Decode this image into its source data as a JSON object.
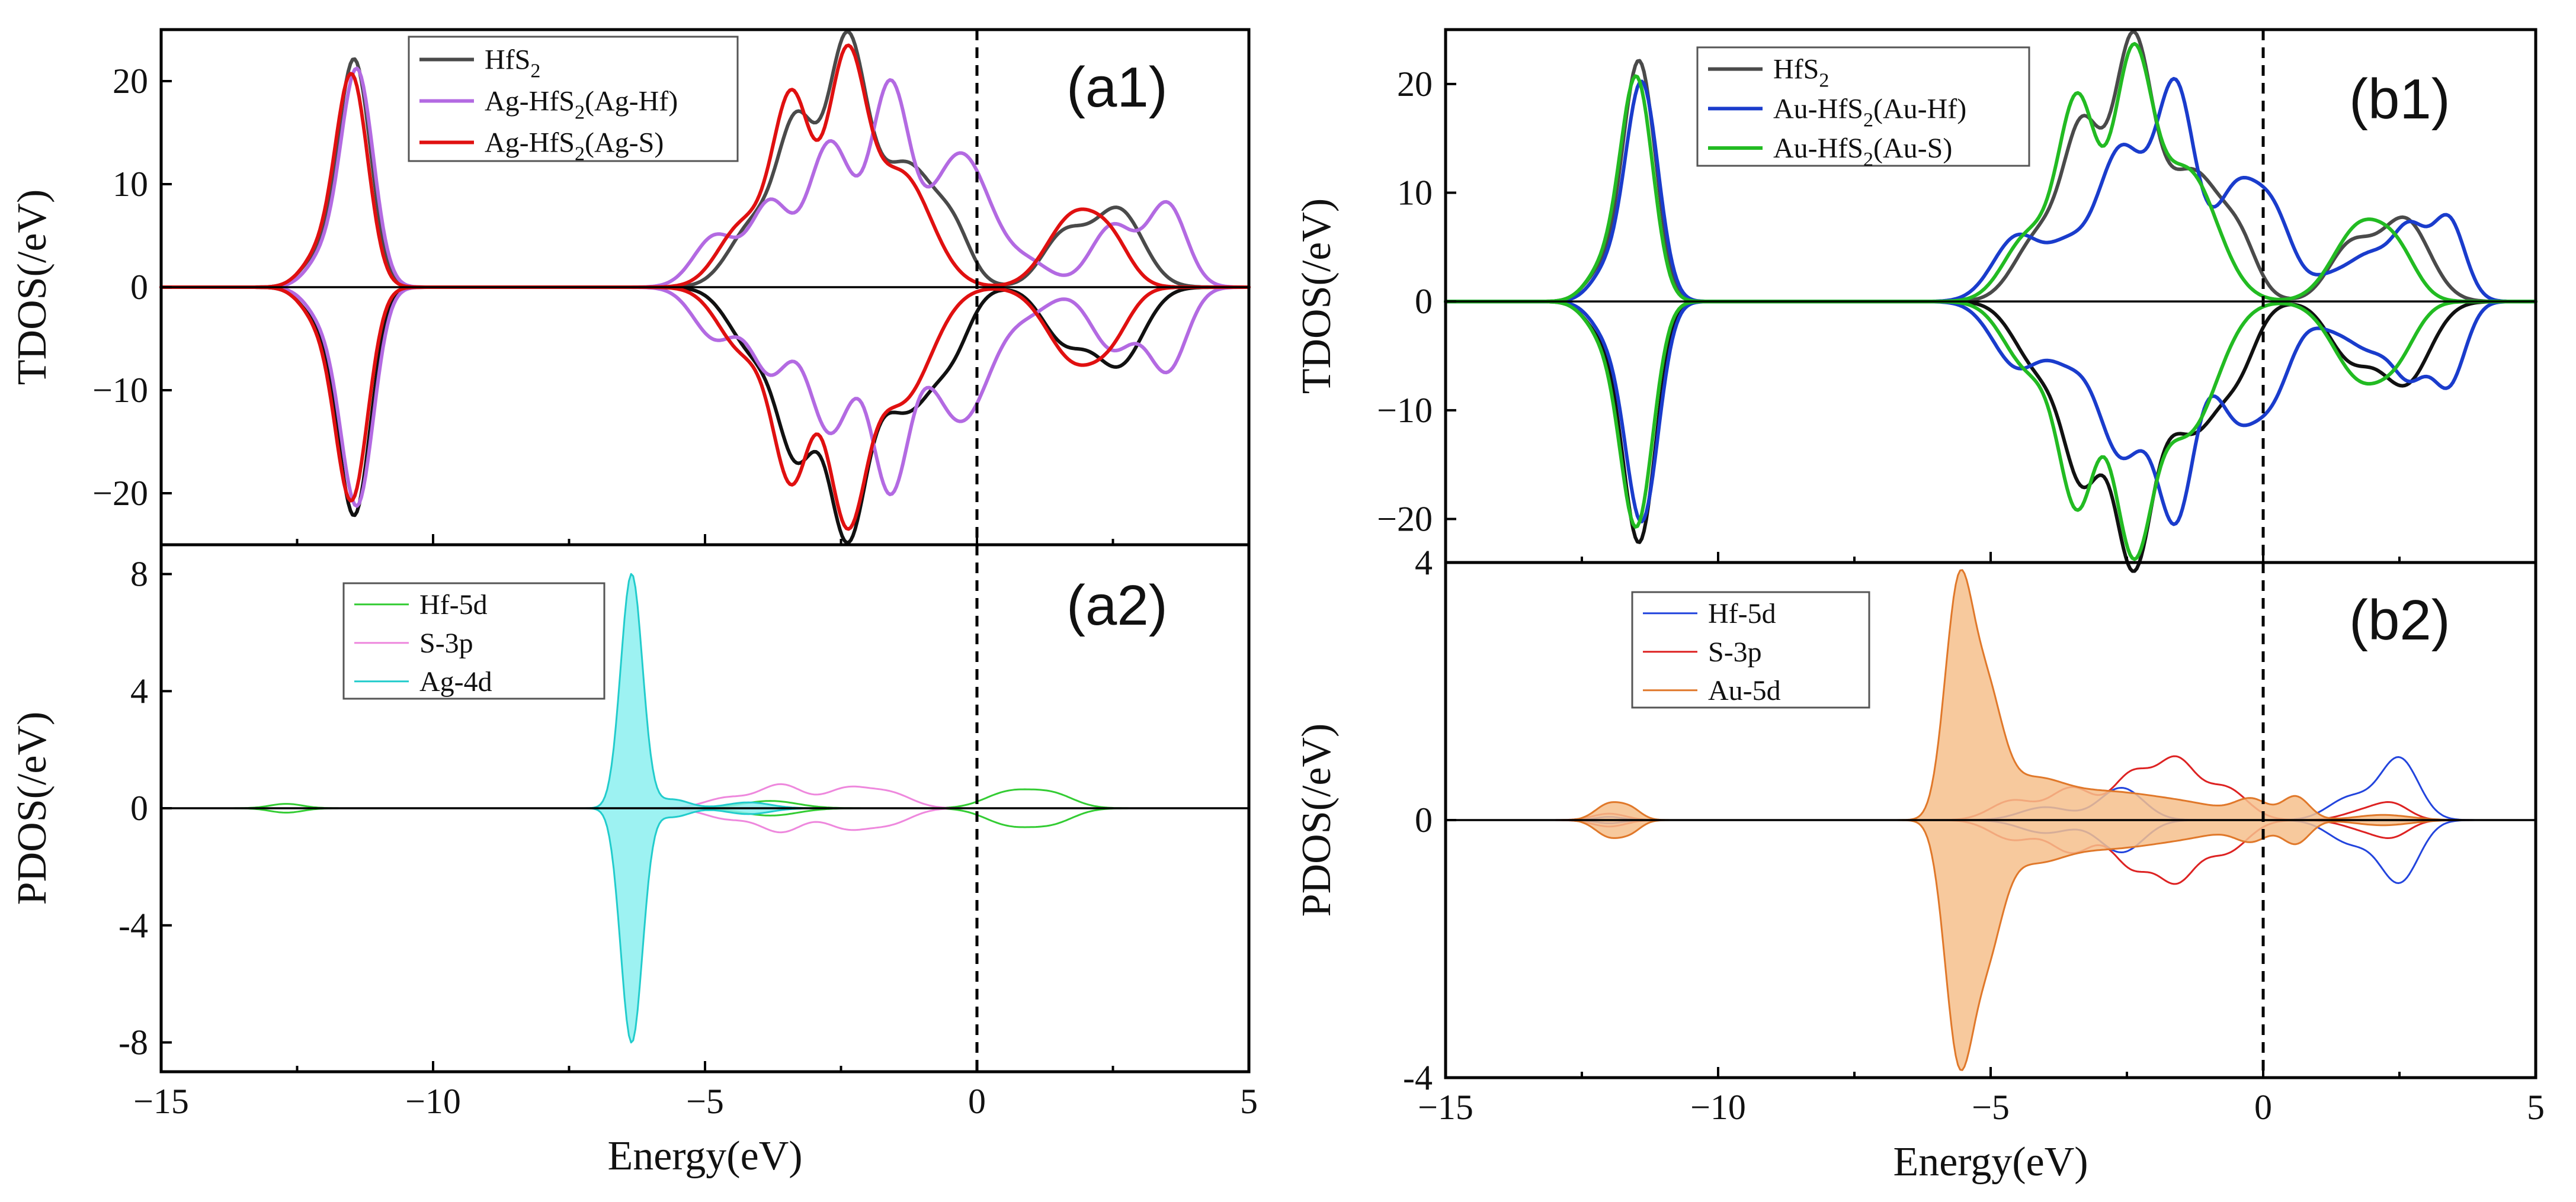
{
  "chart_data": [
    {
      "id": "a1",
      "type": "line",
      "panel_label": "(a1)",
      "ylabel": "TDOS(/eV)",
      "xlim": [
        -15,
        5
      ],
      "ylim": [
        -25,
        25
      ],
      "yticks": [
        20,
        10,
        0,
        -10,
        -20
      ],
      "ytick_labels": [
        "20",
        "10",
        "0",
        "−10",
        "−20"
      ],
      "fermi_level": 0,
      "legend_position": "top-center",
      "series": [
        {
          "name": "HfS2",
          "label_base": "HfS",
          "label_sub": "2",
          "label_tail": "",
          "color": "#4a4a4a",
          "mirror_color": "#111111",
          "peaks": [
            {
              "c": -11.45,
              "w": 0.3,
              "a": 22
            },
            {
              "c": -12.15,
              "w": 0.3,
              "a": 2.5
            },
            {
              "c": -4.1,
              "w": 0.45,
              "a": 6
            },
            {
              "c": -3.3,
              "w": 0.35,
              "a": 15
            },
            {
              "c": -2.4,
              "w": 0.35,
              "a": 22
            },
            {
              "c": -1.3,
              "w": 0.6,
              "a": 12
            },
            {
              "c": -0.4,
              "w": 0.3,
              "a": 3
            },
            {
              "c": 1.6,
              "w": 0.4,
              "a": 5
            },
            {
              "c": 2.6,
              "w": 0.45,
              "a": 7.5
            }
          ]
        },
        {
          "name": "Ag-HfS2(Ag-Hf)",
          "label_base": "Ag-HfS",
          "label_sub": "2",
          "label_tail": "(Ag-Hf)",
          "color": "#b36ae2",
          "mirror_color": "#b36ae2",
          "peaks": [
            {
              "c": -11.4,
              "w": 0.3,
              "a": 21
            },
            {
              "c": -12.05,
              "w": 0.3,
              "a": 2.5
            },
            {
              "c": -4.8,
              "w": 0.4,
              "a": 5
            },
            {
              "c": -3.8,
              "w": 0.35,
              "a": 8
            },
            {
              "c": -2.7,
              "w": 0.4,
              "a": 14
            },
            {
              "c": -1.6,
              "w": 0.35,
              "a": 19
            },
            {
              "c": -0.3,
              "w": 0.55,
              "a": 13
            },
            {
              "c": 1.0,
              "w": 0.4,
              "a": 2
            },
            {
              "c": 2.5,
              "w": 0.4,
              "a": 6
            },
            {
              "c": 3.5,
              "w": 0.35,
              "a": 8
            }
          ]
        },
        {
          "name": "Ag-HfS2(Ag-S)",
          "label_base": "Ag-HfS",
          "label_sub": "2",
          "label_tail": "(Ag-S)",
          "color": "#e01010",
          "mirror_color": "#e01010",
          "peaks": [
            {
              "c": -11.5,
              "w": 0.3,
              "a": 20.5
            },
            {
              "c": -12.15,
              "w": 0.3,
              "a": 2.5
            },
            {
              "c": -4.3,
              "w": 0.45,
              "a": 6
            },
            {
              "c": -3.4,
              "w": 0.35,
              "a": 18
            },
            {
              "c": -2.4,
              "w": 0.35,
              "a": 21
            },
            {
              "c": -1.4,
              "w": 0.55,
              "a": 11
            },
            {
              "c": 1.8,
              "w": 0.5,
              "a": 7
            },
            {
              "c": 2.5,
              "w": 0.35,
              "a": 3
            }
          ]
        }
      ]
    },
    {
      "id": "a2",
      "type": "area",
      "panel_label": "(a2)",
      "ylabel": "PDOS(/eV)",
      "xlabel": "Energy(eV)",
      "xlim": [
        -15,
        5
      ],
      "ylim": [
        -9,
        9
      ],
      "yticks": [
        8,
        4,
        0,
        -4,
        -8
      ],
      "ytick_labels": [
        "8",
        "4",
        "0",
        "-4",
        "-8"
      ],
      "xticks": [
        -15,
        -10,
        -5,
        0,
        5
      ],
      "xtick_labels": [
        "−15",
        "−10",
        "−5",
        "0",
        "5"
      ],
      "fermi_level": 0,
      "legend_position": "top-left",
      "series": [
        {
          "name": "Hf-5d",
          "color": "#33cc33",
          "fill": "none",
          "peaks": [
            {
              "c": -12.7,
              "w": 0.3,
              "a": 0.15
            },
            {
              "c": -3.8,
              "w": 0.5,
              "a": 0.25
            },
            {
              "c": 0.6,
              "w": 0.45,
              "a": 0.55
            },
            {
              "c": 1.4,
              "w": 0.4,
              "a": 0.45
            }
          ]
        },
        {
          "name": "S-3p",
          "color": "#ee88dd",
          "fill": "none",
          "peaks": [
            {
              "c": -4.6,
              "w": 0.4,
              "a": 0.35
            },
            {
              "c": -3.6,
              "w": 0.4,
              "a": 0.8
            },
            {
              "c": -2.4,
              "w": 0.4,
              "a": 0.65
            },
            {
              "c": -1.6,
              "w": 0.4,
              "a": 0.5
            }
          ]
        },
        {
          "name": "Ag-4d",
          "color": "#22cccc",
          "fill": "#8cf0f0",
          "peaks": [
            {
              "c": -6.35,
              "w": 0.2,
              "a": 8.0
            },
            {
              "c": -5.6,
              "w": 0.3,
              "a": 0.3
            },
            {
              "c": -4.2,
              "w": 0.4,
              "a": 0.2
            }
          ]
        }
      ]
    },
    {
      "id": "b1",
      "type": "line",
      "panel_label": "(b1)",
      "ylabel": "TDOS(/eV)",
      "xlim": [
        -15,
        5
      ],
      "ylim": [
        -24,
        25
      ],
      "yticks": [
        20,
        10,
        0,
        -10,
        -20
      ],
      "ytick_labels": [
        "20",
        "10",
        "0",
        "−10",
        "−20"
      ],
      "fermi_level": 0,
      "legend_position": "top-left",
      "series": [
        {
          "name": "HfS2",
          "label_base": "HfS",
          "label_sub": "2",
          "label_tail": "",
          "color": "#4a4a4a",
          "mirror_color": "#111111",
          "peaks": [
            {
              "c": -11.45,
              "w": 0.3,
              "a": 22
            },
            {
              "c": -12.15,
              "w": 0.3,
              "a": 2.5
            },
            {
              "c": -4.1,
              "w": 0.45,
              "a": 6
            },
            {
              "c": -3.3,
              "w": 0.35,
              "a": 15
            },
            {
              "c": -2.4,
              "w": 0.35,
              "a": 22
            },
            {
              "c": -1.3,
              "w": 0.6,
              "a": 12
            },
            {
              "c": -0.4,
              "w": 0.3,
              "a": 3
            },
            {
              "c": 1.6,
              "w": 0.4,
              "a": 5
            },
            {
              "c": 2.6,
              "w": 0.45,
              "a": 7.5
            }
          ]
        },
        {
          "name": "Au-HfS2(Au-Hf)",
          "label_base": "Au-HfS",
          "label_sub": "2",
          "label_tail": "(Au-Hf)",
          "color": "#1a3ccc",
          "mirror_color": "#1a3ccc",
          "peaks": [
            {
              "c": -11.4,
              "w": 0.3,
              "a": 20
            },
            {
              "c": -12.05,
              "w": 0.3,
              "a": 2.5
            },
            {
              "c": -4.5,
              "w": 0.45,
              "a": 6
            },
            {
              "c": -3.6,
              "w": 0.35,
              "a": 4
            },
            {
              "c": -2.6,
              "w": 0.45,
              "a": 14
            },
            {
              "c": -1.6,
              "w": 0.35,
              "a": 19
            },
            {
              "c": -0.5,
              "w": 0.4,
              "a": 10
            },
            {
              "c": 0.2,
              "w": 0.35,
              "a": 7
            },
            {
              "c": 1.2,
              "w": 0.4,
              "a": 2
            },
            {
              "c": 2.0,
              "w": 0.4,
              "a": 4
            },
            {
              "c": 2.7,
              "w": 0.3,
              "a": 6
            },
            {
              "c": 3.4,
              "w": 0.3,
              "a": 7.5
            }
          ]
        },
        {
          "name": "Au-HfS2(Au-S)",
          "label_base": "Au-HfS",
          "label_sub": "2",
          "label_tail": "(Au-S)",
          "color": "#22bb22",
          "mirror_color": "#22bb22",
          "peaks": [
            {
              "c": -11.5,
              "w": 0.3,
              "a": 20.5
            },
            {
              "c": -12.15,
              "w": 0.3,
              "a": 2.5
            },
            {
              "c": -4.3,
              "w": 0.45,
              "a": 6
            },
            {
              "c": -3.4,
              "w": 0.35,
              "a": 18
            },
            {
              "c": -2.4,
              "w": 0.35,
              "a": 21
            },
            {
              "c": -1.4,
              "w": 0.55,
              "a": 12
            },
            {
              "c": 1.8,
              "w": 0.5,
              "a": 7
            },
            {
              "c": 2.5,
              "w": 0.35,
              "a": 3
            }
          ]
        }
      ]
    },
    {
      "id": "b2",
      "type": "area",
      "panel_label": "(b2)",
      "ylabel": "PDOS(/eV)",
      "xlabel": "Energy(eV)",
      "xlim": [
        -15,
        5
      ],
      "ylim": [
        -4,
        4
      ],
      "yticks": [
        4,
        0,
        -4
      ],
      "ytick_labels": [
        "4",
        "0",
        "-4"
      ],
      "xticks": [
        -15,
        -10,
        -5,
        0,
        5
      ],
      "xtick_labels": [
        "−15",
        "−10",
        "−5",
        "0",
        "5"
      ],
      "fermi_level": 0,
      "legend_position": "top-left",
      "series": [
        {
          "name": "Hf-5d",
          "color": "#2244dd",
          "fill": "none",
          "peaks": [
            {
              "c": -12.0,
              "w": 0.25,
              "a": 0.05
            },
            {
              "c": -4.0,
              "w": 0.45,
              "a": 0.2
            },
            {
              "c": -2.6,
              "w": 0.4,
              "a": 0.5
            },
            {
              "c": 1.6,
              "w": 0.4,
              "a": 0.35
            },
            {
              "c": 2.5,
              "w": 0.35,
              "a": 0.95
            }
          ]
        },
        {
          "name": "S-3p",
          "color": "#dd2222",
          "fill": "none",
          "peaks": [
            {
              "c": -12.0,
              "w": 0.3,
              "a": 0.1
            },
            {
              "c": -4.6,
              "w": 0.4,
              "a": 0.3
            },
            {
              "c": -3.5,
              "w": 0.4,
              "a": 0.5
            },
            {
              "c": -2.4,
              "w": 0.35,
              "a": 0.7
            },
            {
              "c": -1.6,
              "w": 0.35,
              "a": 0.9
            },
            {
              "c": -0.7,
              "w": 0.4,
              "a": 0.5
            },
            {
              "c": 1.9,
              "w": 0.4,
              "a": 0.15
            },
            {
              "c": 2.4,
              "w": 0.3,
              "a": 0.2
            }
          ]
        },
        {
          "name": "Au-5d",
          "color": "#e0782a",
          "fill": "#f6c08c",
          "peaks": [
            {
              "c": -12.0,
              "w": 0.25,
              "a": 0.25
            },
            {
              "c": -11.6,
              "w": 0.2,
              "a": 0.15
            },
            {
              "c": -5.6,
              "w": 0.25,
              "a": 3.3
            },
            {
              "c": -5.1,
              "w": 0.3,
              "a": 1.8
            },
            {
              "c": -4.3,
              "w": 0.6,
              "a": 0.55
            },
            {
              "c": -3.0,
              "w": 0.8,
              "a": 0.35
            },
            {
              "c": -1.5,
              "w": 0.9,
              "a": 0.25
            },
            {
              "c": -0.2,
              "w": 0.3,
              "a": 0.25
            },
            {
              "c": 0.6,
              "w": 0.25,
              "a": 0.35
            },
            {
              "c": 2.2,
              "w": 0.5,
              "a": 0.08
            }
          ]
        }
      ]
    }
  ]
}
